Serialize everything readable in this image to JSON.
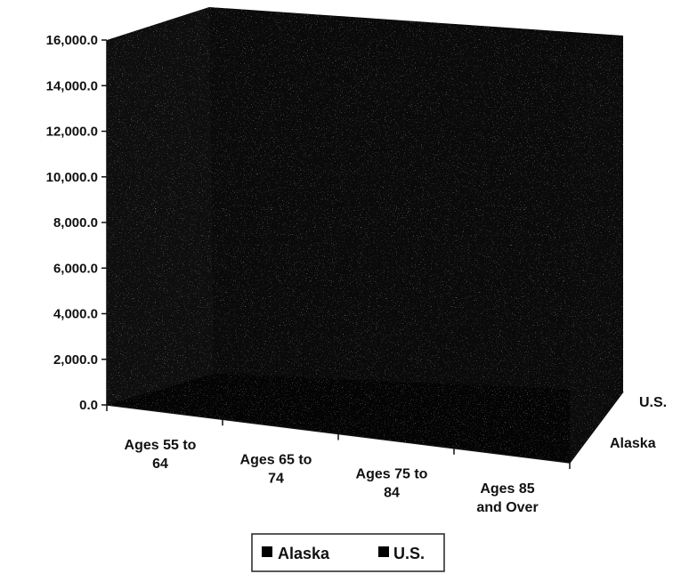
{
  "chart_data": {
    "type": "bar",
    "subtype": "3d-column",
    "title": "",
    "xlabel": "",
    "ylabel": "",
    "ylim": [
      0,
      16000
    ],
    "yticks": [
      "0.0",
      "2,000.0",
      "4,000.0",
      "6,000.0",
      "8,000.0",
      "10,000.0",
      "12,000.0",
      "14,000.0",
      "16,000.0"
    ],
    "categories": [
      [
        "Ages 55 to",
        "64"
      ],
      [
        "Ages 65 to",
        "74"
      ],
      [
        "Ages 75 to",
        "84"
      ],
      [
        "Ages 85",
        "and Over"
      ]
    ],
    "depth_labels": [
      "U.S.",
      "Alaska"
    ],
    "series": [
      {
        "name": "Alaska",
        "values": [
          null,
          null,
          null,
          null
        ]
      },
      {
        "name": "U.S.",
        "values": [
          null,
          null,
          null,
          null
        ]
      }
    ],
    "legend": {
      "position": "bottom",
      "entries": [
        "Alaska",
        "U.S."
      ]
    },
    "grid": false,
    "colors": {
      "walls": "#0c0c0c",
      "floor": "#050505",
      "legend_swatch": "#000000"
    }
  }
}
